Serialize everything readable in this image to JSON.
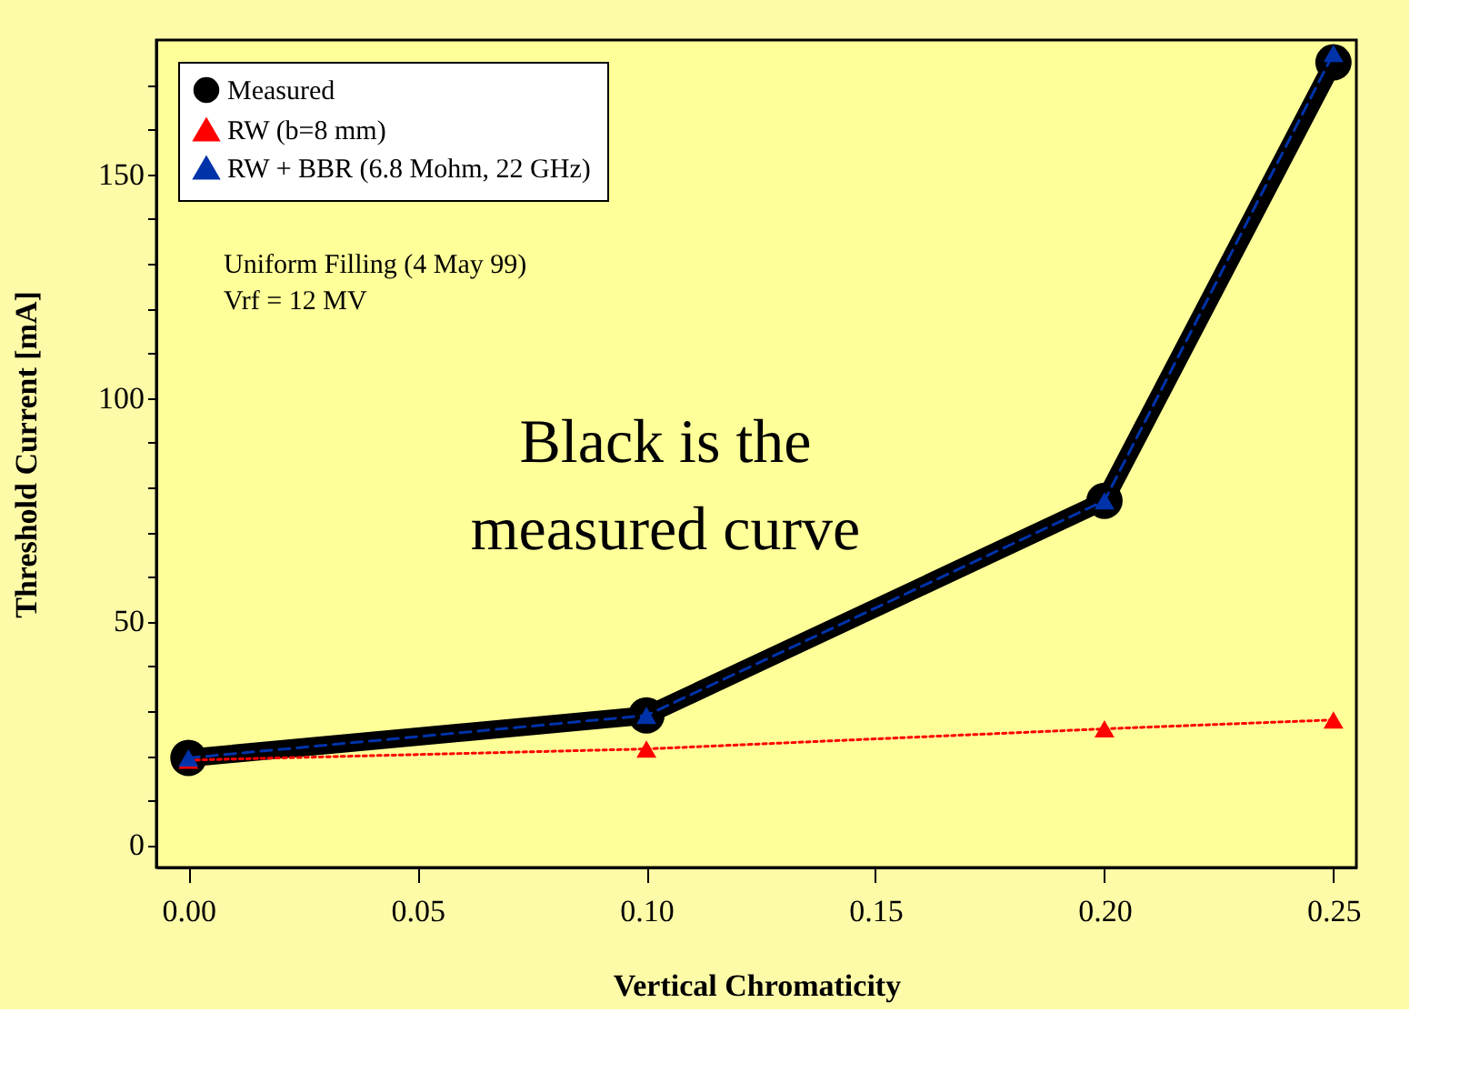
{
  "chart_data": {
    "type": "line",
    "xlabel": "Vertical Chromaticity",
    "ylabel": "Threshold Current [mA]",
    "x": [
      0.0,
      0.1,
      0.2,
      0.25
    ],
    "series": [
      {
        "name": "Measured",
        "color": "#000000",
        "values": [
          19.5,
          29,
          77,
          175
        ],
        "marker": "circle",
        "line_style": "solid"
      },
      {
        "name": "RW (b=8 mm)",
        "color": "#ff0000",
        "values": [
          19,
          21.5,
          26,
          28
        ],
        "marker": "triangle",
        "line_style": "dotted"
      },
      {
        "name": "RW + BBR (6.8 Mohm, 22 GHz)",
        "color": "#0033aa",
        "values": [
          19.5,
          29,
          77,
          177
        ],
        "marker": "triangle",
        "line_style": "dashed"
      }
    ],
    "xlim": [
      -0.007,
      0.255
    ],
    "ylim": [
      -5,
      180
    ],
    "xticks": [
      {
        "value": 0,
        "label": "0.00"
      },
      0.05,
      {
        "value": 0.1,
        "label": "0.10"
      },
      0.15,
      {
        "value": 0.2,
        "label": "0.20"
      },
      0.25
    ],
    "yticks": [
      0,
      {
        "value": 10,
        "label": null
      },
      {
        "value": 20,
        "label": null
      },
      {
        "value": 30,
        "label": null
      },
      {
        "value": 40,
        "label": null
      },
      50,
      {
        "value": 60,
        "label": null
      },
      {
        "value": 70,
        "label": null
      },
      {
        "value": 80,
        "label": null
      },
      {
        "value": 90,
        "label": null
      },
      100,
      {
        "value": 110,
        "label": null
      },
      {
        "value": 120,
        "label": null
      },
      {
        "value": 130,
        "label": null
      },
      {
        "value": 140,
        "label": null
      },
      150,
      {
        "value": 160,
        "label": null
      },
      {
        "value": 170,
        "label": null
      }
    ],
    "annotations": [
      "Uniform Filling (4 May 99)\nVrf = 12 MV",
      "Black is the\nmeasured curve"
    ],
    "legend": "top left",
    "grid": false
  }
}
